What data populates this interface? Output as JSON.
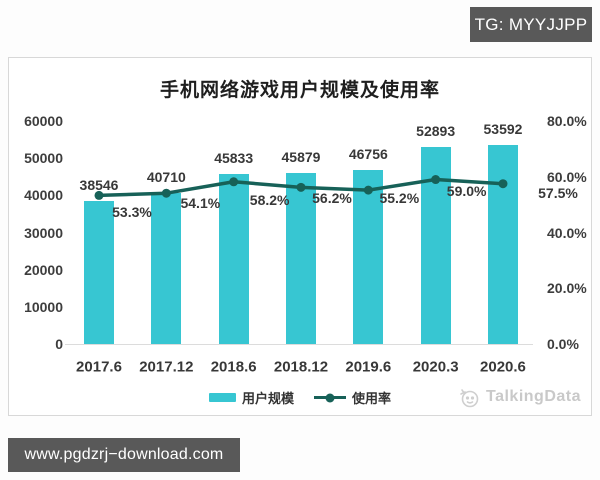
{
  "overlays": {
    "tg_badge": "TG: MYYJJPP",
    "url_badge": "www.pgdzrj−download.com"
  },
  "watermark": {
    "brand": "TalkingData",
    "icon": "talkingdata-logo"
  },
  "colors": {
    "bar": "#37C6D2",
    "line": "#176158",
    "badge_bg": "#595959",
    "label_text": "#383838",
    "watermark_text": "#c9c9c9",
    "axis_line": "#dcdcdc"
  },
  "chart_data": {
    "type": "bar",
    "subtype": "bar+line dual-axis",
    "title": "手机网络游戏用户规模及使用率",
    "categories": [
      "2017.6",
      "2017.12",
      "2018.6",
      "2018.12",
      "2019.6",
      "2020.3",
      "2020.6"
    ],
    "series": [
      {
        "name": "用户规模",
        "type": "bar",
        "axis": "left",
        "values": [
          38546,
          40710,
          45833,
          45879,
          46756,
          52893,
          53592
        ]
      },
      {
        "name": "使用率",
        "type": "line",
        "axis": "right",
        "values": [
          53.3,
          54.1,
          58.2,
          56.2,
          55.2,
          59.0,
          57.5
        ],
        "labels": [
          "53.3%",
          "54.1%",
          "58.2%",
          "56.2%",
          "55.2%",
          "59.0%",
          "57.5%"
        ]
      }
    ],
    "left_axis": {
      "min": 0,
      "max": 60000,
      "step": 10000,
      "ticks": [
        "60000",
        "50000",
        "40000",
        "30000",
        "20000",
        "10000",
        "0"
      ]
    },
    "right_axis": {
      "min": 0,
      "max": 80,
      "step": 20,
      "ticks": [
        "80.0%",
        "60.0%",
        "40.0%",
        "20.0%",
        "0.0%"
      ]
    },
    "grid": false,
    "legend_position": "bottom"
  }
}
